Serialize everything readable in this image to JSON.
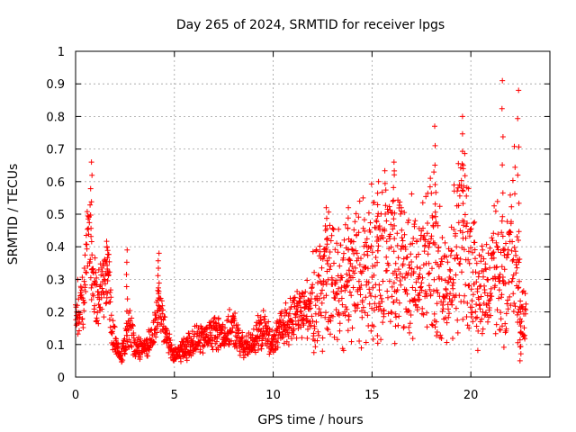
{
  "chart_data": {
    "type": "scatter",
    "title": "Day 265 of 2024, SRMTID for receiver lpgs",
    "xlabel": "GPS time / hours",
    "ylabel": "SRMTID / TECUs",
    "xlim": [
      0,
      24
    ],
    "ylim": [
      0,
      1
    ],
    "xticks": [
      "0",
      "5",
      "10",
      "15",
      "20"
    ],
    "yticks": [
      "0",
      "0.1",
      "0.2",
      "0.3",
      "0.4",
      "0.5",
      "0.6",
      "0.7",
      "0.8",
      "0.9",
      "1"
    ],
    "grid": true,
    "marker": "+",
    "color": "#ff0000",
    "series": [
      {
        "name": "SRMTID",
        "trend": [
          [
            0.0,
            0.21
          ],
          [
            0.4,
            0.23
          ],
          [
            0.7,
            0.48
          ],
          [
            0.9,
            0.27
          ],
          [
            1.2,
            0.25
          ],
          [
            1.6,
            0.32
          ],
          [
            1.9,
            0.12
          ],
          [
            2.3,
            0.06
          ],
          [
            2.7,
            0.15
          ],
          [
            3.0,
            0.1
          ],
          [
            3.5,
            0.09
          ],
          [
            3.9,
            0.12
          ],
          [
            4.2,
            0.22
          ],
          [
            4.6,
            0.13
          ],
          [
            5.0,
            0.06
          ],
          [
            5.5,
            0.09
          ],
          [
            6.0,
            0.11
          ],
          [
            6.5,
            0.12
          ],
          [
            7.0,
            0.14
          ],
          [
            7.5,
            0.13
          ],
          [
            8.0,
            0.15
          ],
          [
            8.5,
            0.09
          ],
          [
            9.0,
            0.11
          ],
          [
            9.5,
            0.15
          ],
          [
            10.0,
            0.1
          ],
          [
            10.5,
            0.16
          ],
          [
            11.0,
            0.18
          ],
          [
            11.5,
            0.2
          ],
          [
            12.0,
            0.23
          ],
          [
            12.5,
            0.28
          ],
          [
            13.0,
            0.31
          ],
          [
            13.5,
            0.29
          ],
          [
            14.0,
            0.3
          ],
          [
            14.5,
            0.33
          ],
          [
            15.0,
            0.34
          ],
          [
            15.5,
            0.36
          ],
          [
            16.0,
            0.4
          ],
          [
            16.5,
            0.33
          ],
          [
            17.0,
            0.32
          ],
          [
            17.5,
            0.31
          ],
          [
            18.0,
            0.4
          ],
          [
            18.5,
            0.28
          ],
          [
            19.0,
            0.34
          ],
          [
            19.5,
            0.45
          ],
          [
            20.0,
            0.33
          ],
          [
            20.5,
            0.27
          ],
          [
            21.0,
            0.28
          ],
          [
            21.5,
            0.33
          ],
          [
            21.8,
            0.26
          ],
          [
            22.2,
            0.42
          ],
          [
            22.5,
            0.2
          ],
          [
            22.8,
            0.17
          ]
        ],
        "spikes": [
          [
            0.8,
            0.66
          ],
          [
            1.6,
            0.4
          ],
          [
            2.6,
            0.39
          ],
          [
            4.2,
            0.38
          ],
          [
            12.7,
            0.52
          ],
          [
            13.8,
            0.52
          ],
          [
            15.3,
            0.6
          ],
          [
            16.1,
            0.66
          ],
          [
            18.2,
            0.77
          ],
          [
            19.6,
            0.8
          ],
          [
            21.6,
            0.91
          ],
          [
            22.4,
            0.88
          ],
          [
            22.5,
            0.05
          ]
        ]
      }
    ]
  }
}
